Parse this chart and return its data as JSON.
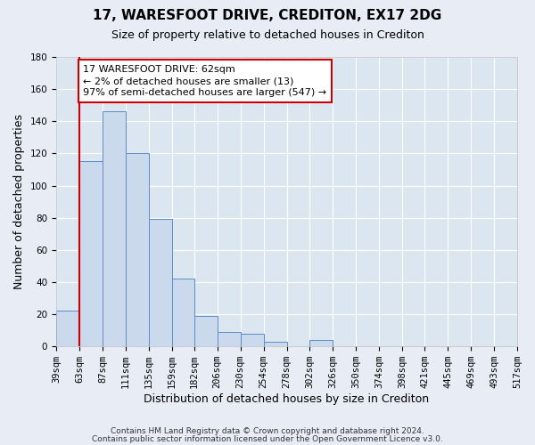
{
  "title": "17, WARESFOOT DRIVE, CREDITON, EX17 2DG",
  "subtitle": "Size of property relative to detached houses in Crediton",
  "xlabel": "Distribution of detached houses by size in Crediton",
  "ylabel": "Number of detached properties",
  "bin_edges": [
    39,
    63,
    87,
    111,
    135,
    159,
    182,
    206,
    230,
    254,
    278,
    302,
    326,
    350,
    374,
    398,
    421,
    445,
    469,
    493,
    517
  ],
  "bin_labels": [
    "39sqm",
    "63sqm",
    "87sqm",
    "111sqm",
    "135sqm",
    "159sqm",
    "182sqm",
    "206sqm",
    "230sqm",
    "254sqm",
    "278sqm",
    "302sqm",
    "326sqm",
    "350sqm",
    "374sqm",
    "398sqm",
    "421sqm",
    "445sqm",
    "469sqm",
    "493sqm",
    "517sqm"
  ],
  "counts": [
    22,
    115,
    146,
    120,
    79,
    42,
    19,
    9,
    8,
    3,
    0,
    4,
    0,
    0,
    0,
    0,
    0,
    0,
    0,
    0,
    2
  ],
  "bar_color": "#cad9ec",
  "bar_edge_color": "#5b8dc8",
  "property_line_x": 63,
  "property_line_color": "#cc0000",
  "annotation_line1": "17 WARESFOOT DRIVE: 62sqm",
  "annotation_line2": "← 2% of detached houses are smaller (13)",
  "annotation_line3": "97% of semi-detached houses are larger (547) →",
  "annotation_box_color": "#ffffff",
  "annotation_box_edge_color": "#cc0000",
  "ylim": [
    0,
    180
  ],
  "yticks": [
    0,
    20,
    40,
    60,
    80,
    100,
    120,
    140,
    160,
    180
  ],
  "footer_line1": "Contains HM Land Registry data © Crown copyright and database right 2024.",
  "footer_line2": "Contains public sector information licensed under the Open Government Licence v3.0.",
  "background_color": "#e8edf5",
  "plot_background_color": "#dce6f0",
  "grid_color": "#ffffff",
  "title_fontsize": 11,
  "subtitle_fontsize": 9,
  "axis_label_fontsize": 9,
  "tick_fontsize": 7.5,
  "footer_fontsize": 6.5
}
